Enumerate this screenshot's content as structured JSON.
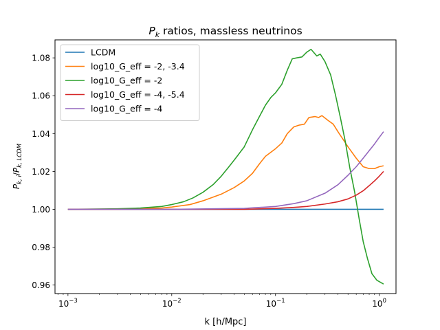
{
  "chart_data": {
    "type": "line",
    "title": "P_k ratios, massless neutrinos",
    "title_parts": {
      "p": "P",
      "sub": "k",
      "rest": " ratios, massless neutrinos"
    },
    "xlabel": "k [h/Mpc]",
    "ylabel_parts": {
      "p1": "P",
      "s1": "k, i",
      "slash": "/",
      "p2": "P",
      "s2": "k, LCDM"
    },
    "xscale": "log",
    "xlim": [
      0.00075,
      1.45
    ],
    "ylim": [
      0.9555,
      1.0895
    ],
    "x_ticks": [
      {
        "value": 0.001,
        "base": "10",
        "exp": "−3"
      },
      {
        "value": 0.01,
        "base": "10",
        "exp": "−2"
      },
      {
        "value": 0.1,
        "base": "10",
        "exp": "−1"
      },
      {
        "value": 1,
        "base": "10",
        "exp": "0"
      }
    ],
    "y_ticks": [
      {
        "value": 0.96,
        "label": "0.96"
      },
      {
        "value": 0.98,
        "label": "0.98"
      },
      {
        "value": 1.0,
        "label": "1.00"
      },
      {
        "value": 1.02,
        "label": "1.02"
      },
      {
        "value": 1.04,
        "label": "1.04"
      },
      {
        "value": 1.06,
        "label": "1.06"
      },
      {
        "value": 1.08,
        "label": "1.08"
      }
    ],
    "grid": false,
    "legend_position": "top-left",
    "series": [
      {
        "name": "LCDM",
        "color": "#1f77b4",
        "points": [
          [
            0.001,
            1.0
          ],
          [
            1.1,
            1.0
          ]
        ]
      },
      {
        "name": "log10_G_eff = -2, -3.4",
        "color": "#ff7f0e",
        "points": [
          [
            0.001,
            1.0
          ],
          [
            0.003,
            1.0
          ],
          [
            0.005,
            1.0004
          ],
          [
            0.008,
            1.0007
          ],
          [
            0.01,
            1.0012
          ],
          [
            0.015,
            1.0025
          ],
          [
            0.02,
            1.0045
          ],
          [
            0.03,
            1.008
          ],
          [
            0.04,
            1.0115
          ],
          [
            0.05,
            1.015
          ],
          [
            0.06,
            1.019
          ],
          [
            0.07,
            1.024
          ],
          [
            0.08,
            1.028
          ],
          [
            0.1,
            1.032
          ],
          [
            0.115,
            1.035
          ],
          [
            0.13,
            1.04
          ],
          [
            0.15,
            1.0435
          ],
          [
            0.17,
            1.0445
          ],
          [
            0.19,
            1.045
          ],
          [
            0.21,
            1.0485
          ],
          [
            0.24,
            1.049
          ],
          [
            0.26,
            1.0485
          ],
          [
            0.28,
            1.0495
          ],
          [
            0.32,
            1.047
          ],
          [
            0.36,
            1.045
          ],
          [
            0.4,
            1.041
          ],
          [
            0.5,
            1.033
          ],
          [
            0.6,
            1.027
          ],
          [
            0.7,
            1.0225
          ],
          [
            0.8,
            1.0215
          ],
          [
            0.9,
            1.0215
          ],
          [
            1.0,
            1.0225
          ],
          [
            1.1,
            1.023
          ]
        ]
      },
      {
        "name": "log10_G_eff = -2",
        "color": "#2ca02c",
        "points": [
          [
            0.001,
            1.0
          ],
          [
            0.003,
            1.0003
          ],
          [
            0.005,
            1.0007
          ],
          [
            0.008,
            1.0015
          ],
          [
            0.01,
            1.0025
          ],
          [
            0.013,
            1.004
          ],
          [
            0.016,
            1.006
          ],
          [
            0.02,
            1.009
          ],
          [
            0.025,
            1.013
          ],
          [
            0.03,
            1.0175
          ],
          [
            0.035,
            1.022
          ],
          [
            0.04,
            1.026
          ],
          [
            0.05,
            1.033
          ],
          [
            0.06,
            1.042
          ],
          [
            0.07,
            1.049
          ],
          [
            0.08,
            1.055
          ],
          [
            0.09,
            1.059
          ],
          [
            0.1,
            1.0615
          ],
          [
            0.115,
            1.066
          ],
          [
            0.13,
            1.0735
          ],
          [
            0.145,
            1.0795
          ],
          [
            0.16,
            1.08
          ],
          [
            0.18,
            1.0805
          ],
          [
            0.2,
            1.083
          ],
          [
            0.22,
            1.0845
          ],
          [
            0.25,
            1.081
          ],
          [
            0.27,
            1.082
          ],
          [
            0.3,
            1.078
          ],
          [
            0.34,
            1.071
          ],
          [
            0.38,
            1.06
          ],
          [
            0.42,
            1.049
          ],
          [
            0.47,
            1.036
          ],
          [
            0.52,
            1.022
          ],
          [
            0.58,
            1.009
          ],
          [
            0.64,
            0.995
          ],
          [
            0.7,
            0.983
          ],
          [
            0.77,
            0.974
          ],
          [
            0.85,
            0.966
          ],
          [
            0.95,
            0.9625
          ],
          [
            1.1,
            0.9605
          ]
        ]
      },
      {
        "name": "log10_G_eff = -4, -5.4",
        "color": "#d62728",
        "points": [
          [
            0.001,
            1.0
          ],
          [
            0.01,
            1.0
          ],
          [
            0.05,
            1.0
          ],
          [
            0.1,
            1.0005
          ],
          [
            0.15,
            1.001
          ],
          [
            0.2,
            1.0015
          ],
          [
            0.3,
            1.0028
          ],
          [
            0.4,
            1.004
          ],
          [
            0.5,
            1.0055
          ],
          [
            0.6,
            1.0075
          ],
          [
            0.7,
            1.0098
          ],
          [
            0.8,
            1.0125
          ],
          [
            0.9,
            1.015
          ],
          [
            1.0,
            1.0175
          ],
          [
            1.1,
            1.02
          ]
        ]
      },
      {
        "name": "log10_G_eff = -4",
        "color": "#9467bd",
        "points": [
          [
            0.001,
            1.0
          ],
          [
            0.01,
            1.0
          ],
          [
            0.05,
            1.0005
          ],
          [
            0.1,
            1.0015
          ],
          [
            0.15,
            1.003
          ],
          [
            0.2,
            1.0045
          ],
          [
            0.3,
            1.0085
          ],
          [
            0.4,
            1.013
          ],
          [
            0.5,
            1.018
          ],
          [
            0.6,
            1.0225
          ],
          [
            0.7,
            1.027
          ],
          [
            0.8,
            1.031
          ],
          [
            0.9,
            1.0345
          ],
          [
            1.0,
            1.038
          ],
          [
            1.1,
            1.041
          ]
        ]
      }
    ]
  }
}
